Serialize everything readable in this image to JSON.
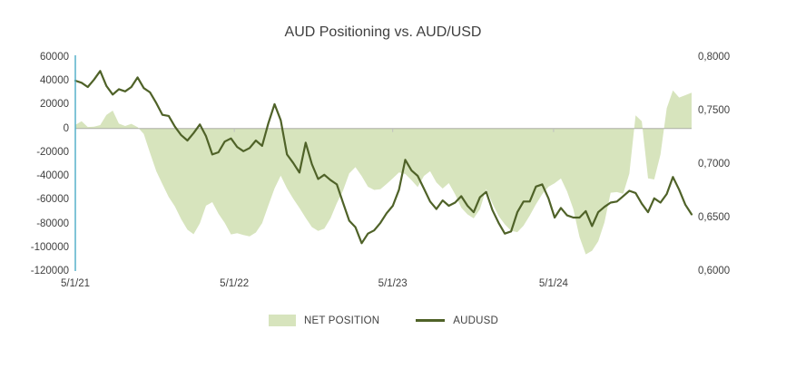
{
  "title": "AUD Positioning vs. AUD/USD",
  "colors": {
    "area_fill": "#d7e4bd",
    "line": "#4f6228",
    "left_axis_line": "#4bacc6",
    "zero_gridline": "rgba(120,120,120,0.40)",
    "tick_mark": "#bfbfbf",
    "label_text": "#404040",
    "title_text": "#3f3f3f",
    "background": "#ffffff"
  },
  "legend": {
    "net_position_label": "NET POSITION",
    "audusd_label": "AUDUSD"
  },
  "chart_data": {
    "type": "area",
    "subtype": "combo-area-line-dual-axis",
    "title": "AUD Positioning vs. AUD/USD",
    "grid": false,
    "legend_position": "bottom",
    "x_start": "2021-05-01",
    "x_step_days": 14,
    "x_ticks": [
      {
        "label": "5/1/21",
        "pos": 0.0
      },
      {
        "label": "5/1/22",
        "pos": 0.258
      },
      {
        "label": "5/1/23",
        "pos": 0.515
      },
      {
        "label": "5/1/24",
        "pos": 0.776
      }
    ],
    "left_axis": {
      "min": -120000,
      "max": 60000,
      "step": 20000,
      "ticks": [
        "60000",
        "40000",
        "20000",
        "0",
        "-20000",
        "-40000",
        "-60000",
        "-80000",
        "-100000",
        "-120000"
      ]
    },
    "right_axis": {
      "min": 0.6,
      "max": 0.8,
      "step": 0.05,
      "ticks": [
        "0,8000",
        "0,7500",
        "0,7000",
        "0,6500",
        "0,6000"
      ]
    },
    "series": [
      {
        "name": "NET POSITION",
        "type": "area",
        "axis": "left",
        "color": "#d7e4bd",
        "values": [
          3000,
          6000,
          1200,
          1500,
          2800,
          11400,
          15000,
          4000,
          2000,
          3900,
          1100,
          -4600,
          -20700,
          -36000,
          -47000,
          -57800,
          -65700,
          -76400,
          -85200,
          -89000,
          -79900,
          -65000,
          -62000,
          -71700,
          -79500,
          -89200,
          -88200,
          -89700,
          -90900,
          -87600,
          -79700,
          -65000,
          -50500,
          -39700,
          -50500,
          -59100,
          -66900,
          -75300,
          -83000,
          -86300,
          -84300,
          -75500,
          -62900,
          -52400,
          -37800,
          -32600,
          -40100,
          -49100,
          -51700,
          -51100,
          -46800,
          -42000,
          -37000,
          -38300,
          -43500,
          -49400,
          -40000,
          -36000,
          -45400,
          -50600,
          -46000,
          -55400,
          -66700,
          -72300,
          -75700,
          -68000,
          -51000,
          -63000,
          -73800,
          -80700,
          -86100,
          -87300,
          -81900,
          -73300,
          -63900,
          -55400,
          -49100,
          -46100,
          -42100,
          -53000,
          -68000,
          -91400,
          -106000,
          -102900,
          -95000,
          -79000,
          -54100,
          -53600,
          -55000,
          -38000,
          11000,
          6000,
          -42000,
          -43000,
          -22000,
          17000,
          32000,
          26000,
          28000,
          30000
        ]
      },
      {
        "name": "AUDUSD",
        "type": "line",
        "axis": "right",
        "color": "#4f6228",
        "values": [
          0.778,
          0.776,
          0.772,
          0.779,
          0.787,
          0.773,
          0.765,
          0.77,
          0.768,
          0.772,
          0.781,
          0.771,
          0.767,
          0.757,
          0.746,
          0.745,
          0.735,
          0.727,
          0.722,
          0.729,
          0.737,
          0.726,
          0.709,
          0.711,
          0.721,
          0.724,
          0.716,
          0.712,
          0.715,
          0.722,
          0.717,
          0.738,
          0.756,
          0.741,
          0.709,
          0.701,
          0.692,
          0.72,
          0.7,
          0.686,
          0.69,
          0.685,
          0.681,
          0.664,
          0.647,
          0.641,
          0.626,
          0.635,
          0.638,
          0.645,
          0.654,
          0.661,
          0.676,
          0.704,
          0.694,
          0.689,
          0.677,
          0.665,
          0.658,
          0.666,
          0.661,
          0.664,
          0.67,
          0.661,
          0.655,
          0.669,
          0.674,
          0.657,
          0.645,
          0.635,
          0.637,
          0.655,
          0.665,
          0.665,
          0.679,
          0.681,
          0.668,
          0.65,
          0.659,
          0.652,
          0.65,
          0.65,
          0.656,
          0.642,
          0.655,
          0.66,
          0.664,
          0.665,
          0.67,
          0.675,
          0.673,
          0.663,
          0.655,
          0.668,
          0.664,
          0.672,
          0.688,
          0.676,
          0.662,
          0.653
        ]
      }
    ]
  }
}
